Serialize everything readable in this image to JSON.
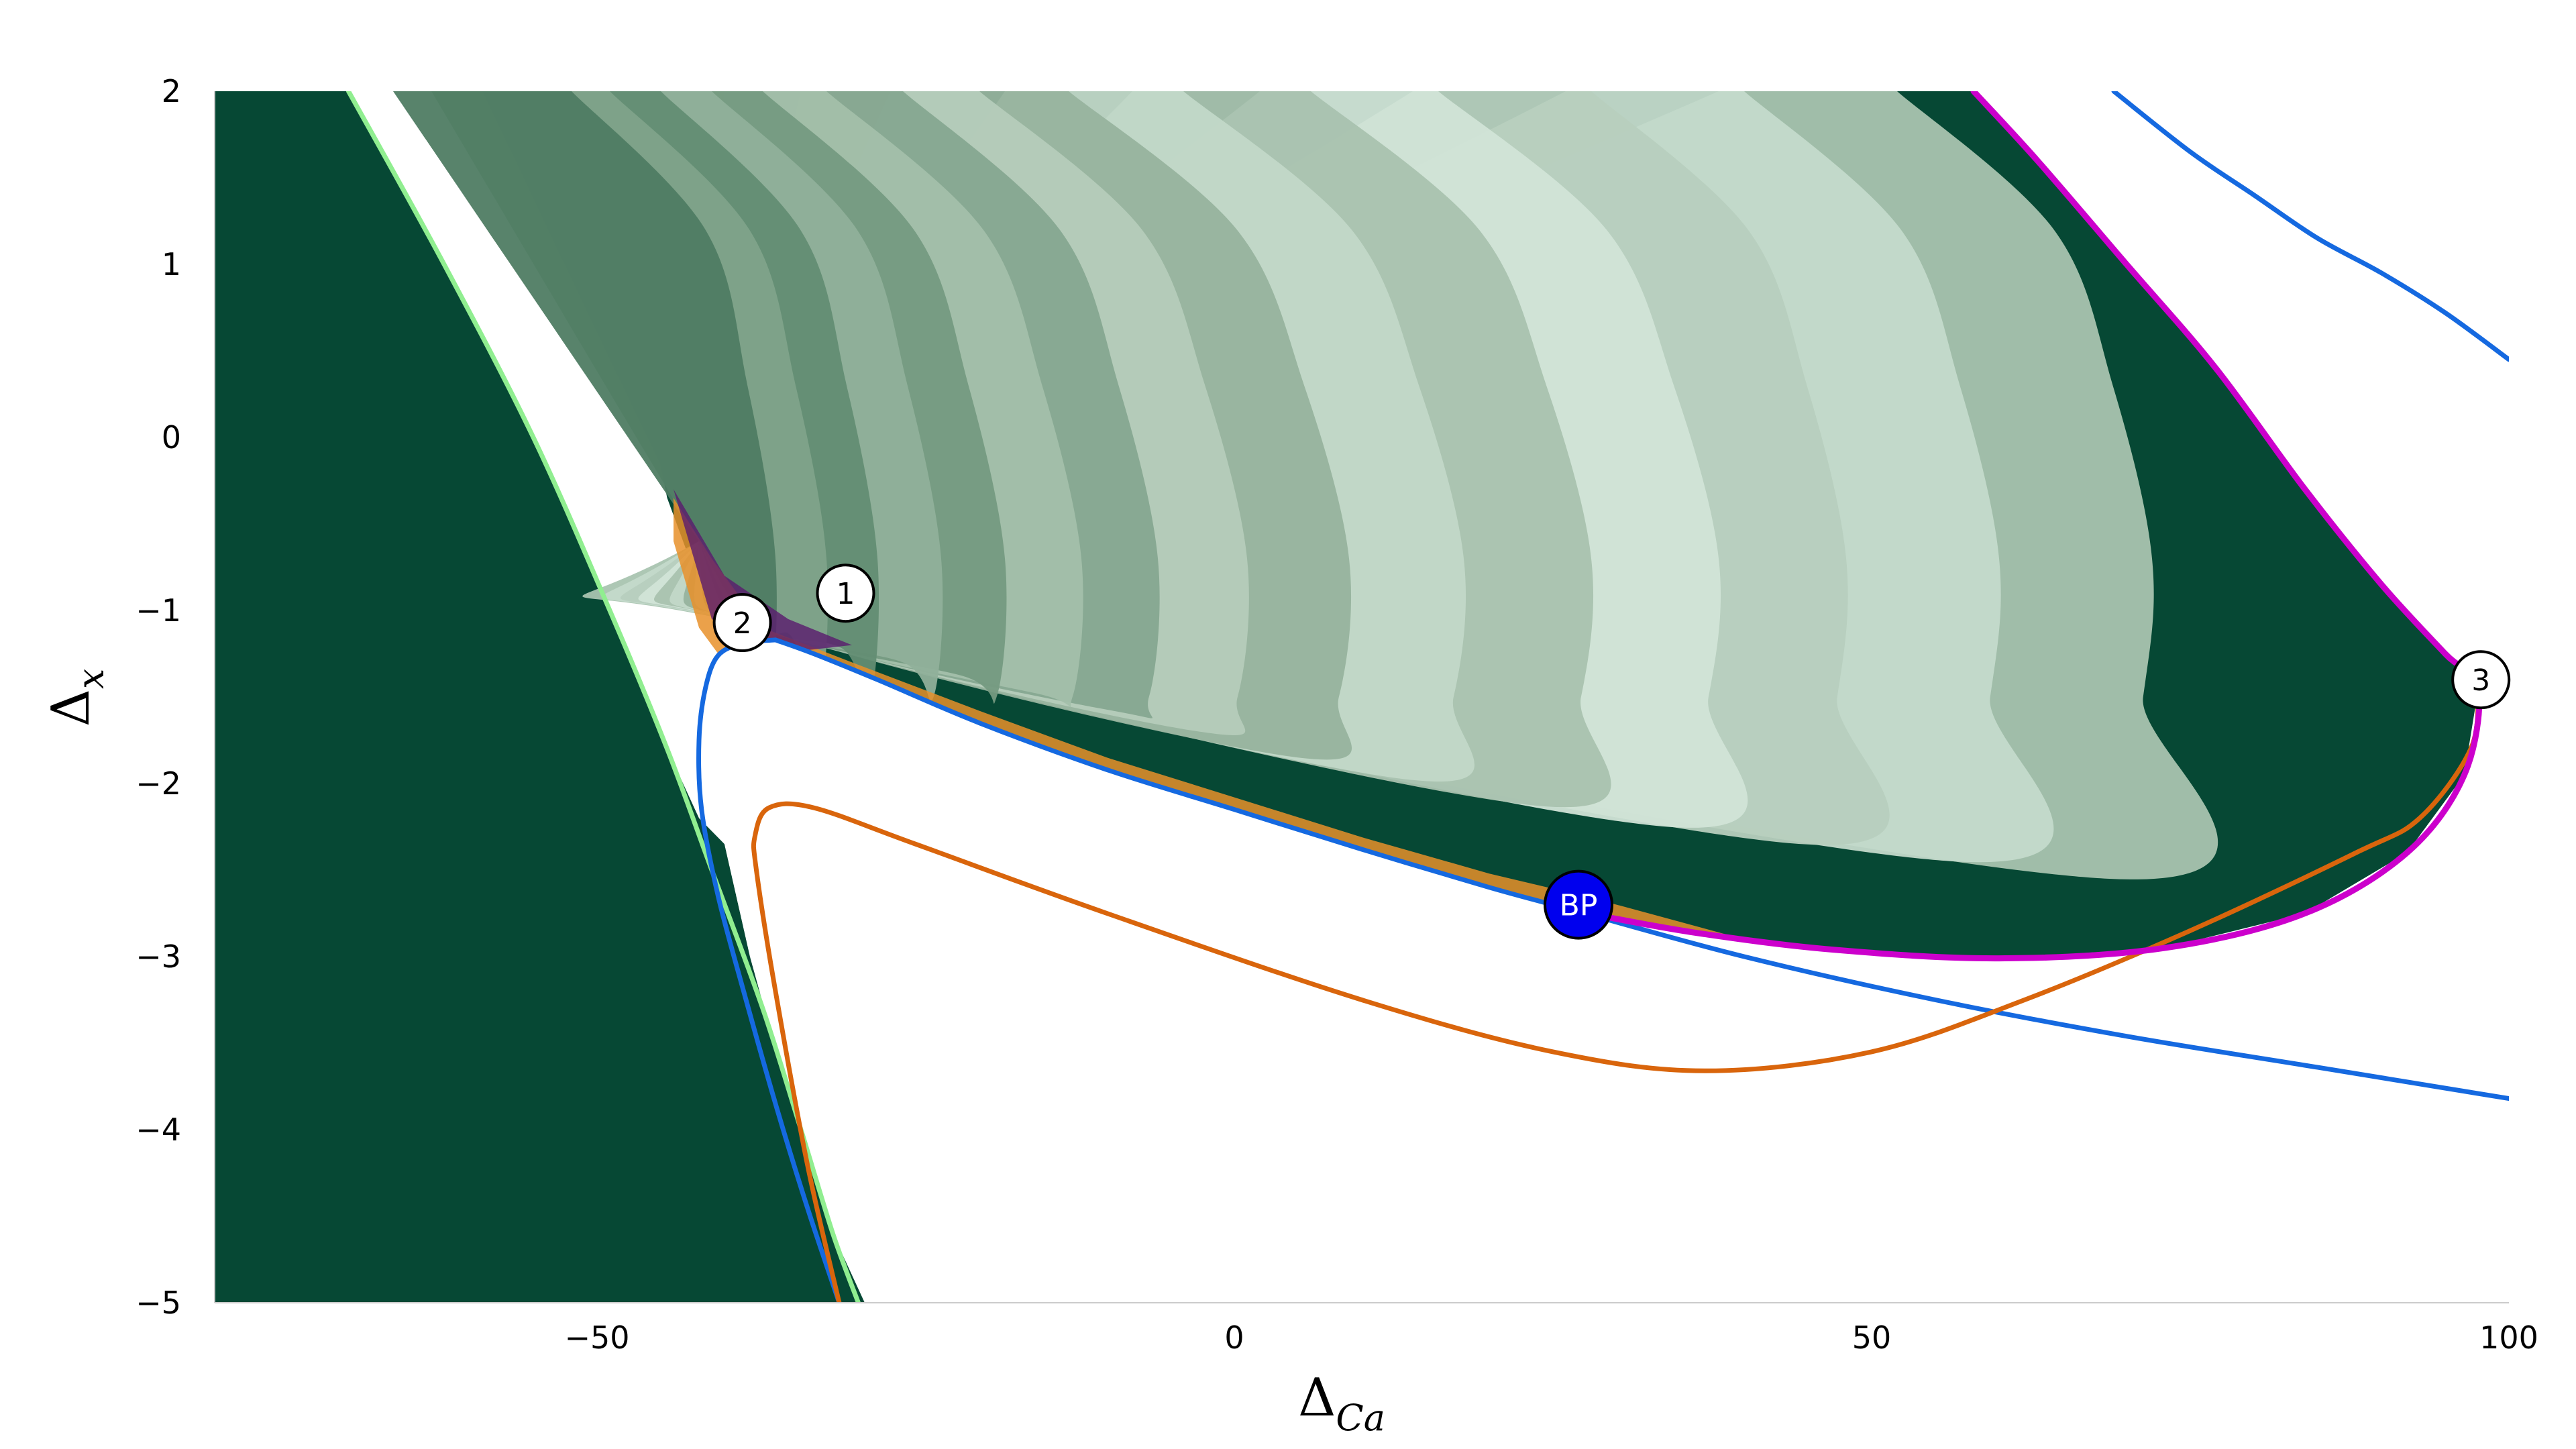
{
  "chart_data": {
    "type": "line",
    "xlabel": "Δ",
    "xlabel_sub": "Ca",
    "ylabel": "Δ",
    "ylabel_sub": "x",
    "xlim": [
      -80,
      100
    ],
    "ylim": [
      -5,
      2
    ],
    "x_ticks": [
      -50,
      0,
      50,
      100
    ],
    "x_tick_labels": [
      "−50",
      "0",
      "50",
      "100"
    ],
    "y_ticks": [
      2,
      1,
      0,
      -1,
      -2,
      -3,
      -4,
      -5
    ],
    "y_tick_labels": [
      "2",
      "1",
      "0",
      "−1",
      "−2",
      "−3",
      "−4",
      "−5"
    ],
    "grid": false,
    "colors": {
      "dark_region": "#064834",
      "light_green": "#cfe3d6",
      "mid_green": "#97b69f",
      "light_green_curve": "#90ee90",
      "blue_curve": "#1569e0",
      "orange_curve": "#d9650c",
      "magenta_curve": "#cc00cc",
      "chaotic_fringe": "#e8902a",
      "bp_fill": "#0000ee"
    },
    "series": [
      {
        "color": "#90ee90",
        "points": [
          [
            -69.5,
            2.0
          ],
          [
            -62,
            1.0
          ],
          [
            -55,
            0.0
          ],
          [
            -49,
            -1.0
          ],
          [
            -44.5,
            -1.8
          ],
          [
            -41,
            -2.5
          ],
          [
            -37,
            -3.3
          ],
          [
            -34,
            -4.0
          ],
          [
            -31.5,
            -4.6
          ],
          [
            -29.5,
            -5.0
          ]
        ]
      },
      {
        "color": "#1569e0",
        "points": [
          [
            -36,
            -1.17
          ],
          [
            -33,
            -1.25
          ],
          [
            -28,
            -1.4
          ],
          [
            -20,
            -1.65
          ],
          [
            -10,
            -1.92
          ],
          [
            0,
            -2.15
          ],
          [
            10,
            -2.38
          ],
          [
            20,
            -2.6
          ],
          [
            27,
            -2.74
          ],
          [
            40,
            -3.0
          ],
          [
            55,
            -3.25
          ],
          [
            70,
            -3.46
          ],
          [
            85,
            -3.64
          ],
          [
            100,
            -3.82
          ]
        ]
      },
      {
        "color": "#1569e0",
        "points": [
          [
            -36,
            -1.17
          ],
          [
            -38.5,
            -1.19
          ],
          [
            -40.5,
            -1.26
          ],
          [
            -41.5,
            -1.45
          ],
          [
            -42,
            -1.75
          ],
          [
            -41.8,
            -2.15
          ],
          [
            -40.5,
            -2.65
          ],
          [
            -38.5,
            -3.2
          ],
          [
            -36,
            -3.85
          ],
          [
            -33.5,
            -4.45
          ],
          [
            -31,
            -5.0
          ]
        ]
      },
      {
        "color": "#1569e0",
        "points": [
          [
            69,
            2.0
          ],
          [
            75,
            1.65
          ],
          [
            80,
            1.4
          ],
          [
            85,
            1.15
          ],
          [
            90,
            0.95
          ],
          [
            95,
            0.72
          ],
          [
            100,
            0.45
          ]
        ]
      },
      {
        "color": "#d9650c",
        "points": [
          [
            -31,
            -5.0
          ],
          [
            -33.5,
            -4.2
          ],
          [
            -36,
            -3.2
          ],
          [
            -37.5,
            -2.5
          ],
          [
            -37.6,
            -2.3
          ],
          [
            -36.5,
            -2.14
          ],
          [
            -33,
            -2.14
          ],
          [
            -25,
            -2.35
          ],
          [
            -10,
            -2.75
          ],
          [
            10,
            -3.25
          ],
          [
            25,
            -3.55
          ],
          [
            37,
            -3.66
          ],
          [
            50,
            -3.55
          ],
          [
            62,
            -3.25
          ],
          [
            75,
            -2.85
          ],
          [
            88,
            -2.4
          ],
          [
            93,
            -2.2
          ],
          [
            97,
            -1.8
          ],
          [
            97.6,
            -1.45
          ]
        ]
      },
      {
        "color": "#cc00cc",
        "points": [
          [
            58,
            2.0
          ],
          [
            63,
            1.6
          ],
          [
            70,
            1.0
          ],
          [
            77,
            0.4
          ],
          [
            84,
            -0.3
          ],
          [
            90,
            -0.85
          ],
          [
            95,
            -1.25
          ],
          [
            97.6,
            -1.45
          ],
          [
            96.5,
            -1.95
          ],
          [
            92,
            -2.4
          ],
          [
            84,
            -2.75
          ],
          [
            73,
            -2.95
          ],
          [
            60,
            -3.01
          ],
          [
            47,
            -2.96
          ],
          [
            36,
            -2.86
          ],
          [
            27,
            -2.74
          ]
        ]
      }
    ],
    "markers": [
      {
        "label": "1",
        "x": -30.5,
        "y": -0.9,
        "style": "white"
      },
      {
        "label": "2",
        "x": -38.6,
        "y": -1.07,
        "style": "white"
      },
      {
        "label": "3",
        "x": 97.8,
        "y": -1.4,
        "style": "white"
      },
      {
        "label": "BP",
        "x": 27,
        "y": -2.7,
        "style": "blue"
      }
    ]
  }
}
